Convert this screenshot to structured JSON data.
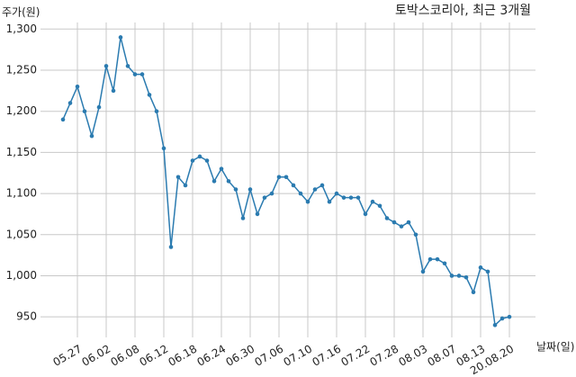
{
  "chart_data": {
    "type": "line",
    "title": "토박스코리아, 최근 3개월",
    "y_label": "주가(원)",
    "x_label": "날짜(일)",
    "categories": [
      null,
      null,
      "05.27",
      null,
      null,
      null,
      "06.02",
      null,
      null,
      null,
      "06.08",
      null,
      null,
      null,
      "06.12",
      null,
      null,
      null,
      "06.18",
      null,
      null,
      null,
      "06.24",
      null,
      null,
      null,
      "06.30",
      null,
      null,
      null,
      "07.06",
      null,
      null,
      null,
      "07.10",
      null,
      null,
      null,
      "07.16",
      null,
      null,
      null,
      "07.22",
      null,
      null,
      null,
      "07.28",
      null,
      null,
      null,
      "08.03",
      null,
      null,
      null,
      "08.07",
      null,
      null,
      null,
      "08.13",
      null,
      null,
      null,
      "20.08.20"
    ],
    "series": [
      {
        "name": "주가",
        "color": "#2b7bb0",
        "values": [
          1190,
          1210,
          1230,
          1200,
          1170,
          1205,
          1255,
          1225,
          1290,
          1255,
          1245,
          1245,
          1220,
          1200,
          1155,
          1035,
          1120,
          1110,
          1140,
          1145,
          1140,
          1115,
          1130,
          1115,
          1105,
          1070,
          1105,
          1075,
          1095,
          1100,
          1120,
          1120,
          1110,
          1100,
          1090,
          1105,
          1110,
          1090,
          1100,
          1095,
          1095,
          1095,
          1075,
          1090,
          1085,
          1070,
          1065,
          1060,
          1065,
          1050,
          1005,
          1020,
          1020,
          1015,
          1000,
          1000,
          998,
          980,
          1010,
          1005,
          940,
          948,
          950
        ]
      }
    ],
    "ylim": [
      925,
      1308
    ],
    "yticks": [
      {
        "value": 950,
        "label": "950"
      },
      {
        "value": 1000,
        "label": "1,000"
      },
      {
        "value": 1050,
        "label": "1,050"
      },
      {
        "value": 1100,
        "label": "1,100"
      },
      {
        "value": 1150,
        "label": "1,150"
      },
      {
        "value": 1200,
        "label": "1,200"
      },
      {
        "value": 1250,
        "label": "1,250"
      },
      {
        "value": 1300,
        "label": "1,300"
      }
    ],
    "grid": true
  }
}
